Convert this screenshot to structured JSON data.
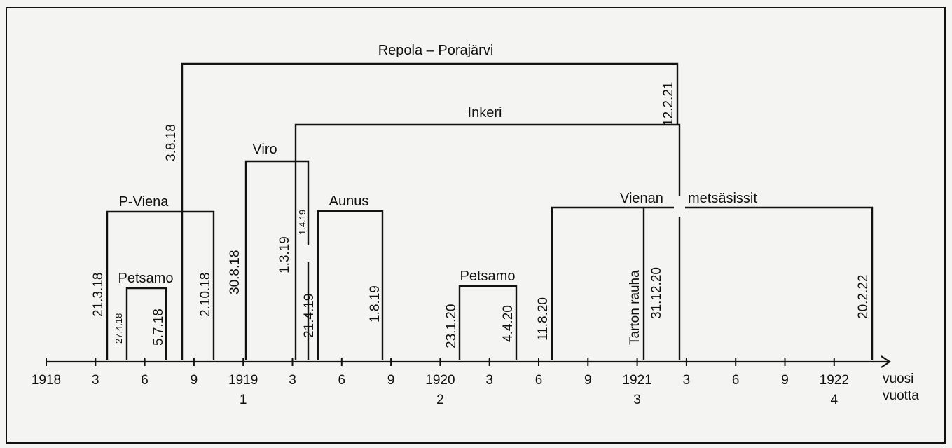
{
  "periods": {
    "repola_porajarvi": {
      "label": "Repola – Porajärvi",
      "start": "3.8.18",
      "end": "12.2.21"
    },
    "inkeri": {
      "label": "Inkeri",
      "start": "1.3.19",
      "end": "12.2.21"
    },
    "viro": {
      "label": "Viro",
      "start": "30.8.18",
      "end": "1.4.19",
      "end_alt": "21.4.19"
    },
    "p_viena": {
      "label": "P-Viena",
      "start": "21.3.18",
      "end": "2.10.18"
    },
    "petsamo_1": {
      "label": "Petsamo",
      "start": "27.4.18",
      "end": "5.7.18"
    },
    "aunus": {
      "label": "Aunus",
      "start": "21.4.19",
      "end": "1.8.19"
    },
    "petsamo_2": {
      "label": "Petsamo",
      "start": "23.1.20",
      "end": "4.4.20"
    },
    "vienan_metsasissit": {
      "label_1": "Vienan",
      "label_2": "metsäsissit",
      "start": "11.8.20",
      "end": "20.2.22"
    },
    "tarton_rauha": {
      "label": "Tarton rauha",
      "date": "31.12.20"
    }
  },
  "axis": {
    "ticks": [
      "1918",
      "3",
      "6",
      "9",
      "1919",
      "3",
      "6",
      "9",
      "1920",
      "3",
      "6",
      "9",
      "1921",
      "3",
      "6",
      "9",
      "1922"
    ],
    "years": [
      "1",
      "2",
      "3",
      "4"
    ],
    "label_top": "vuosi",
    "label_bottom": "vuotta"
  }
}
